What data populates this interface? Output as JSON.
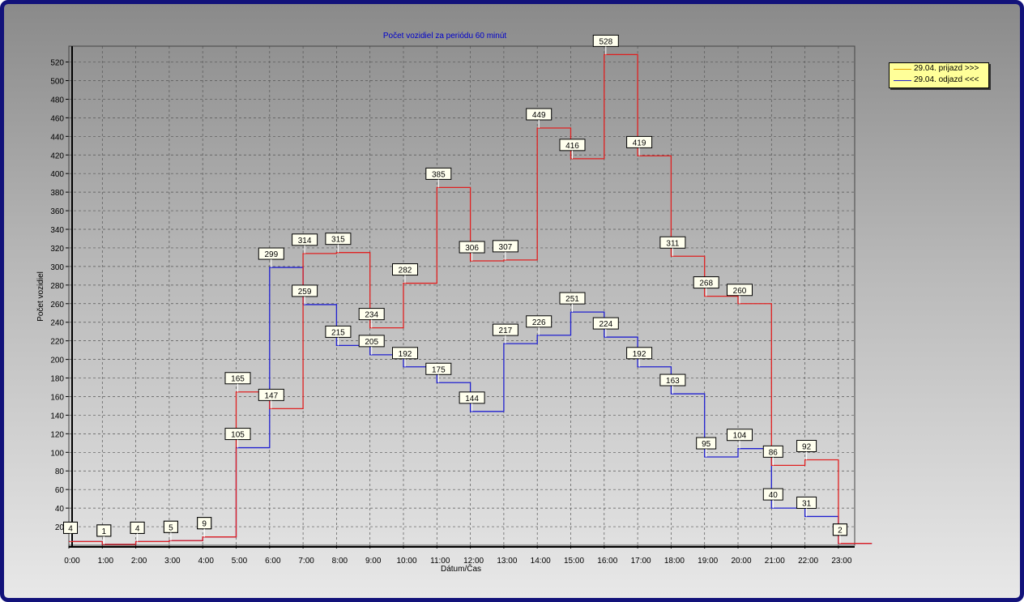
{
  "chart_data": {
    "type": "line",
    "step": true,
    "title": "Počet vozidiel za periódu 60 minút",
    "xlabel": "Dátum/Čas",
    "ylabel": "Počet vozidiel",
    "ylim": [
      0,
      540
    ],
    "yticks": [
      20,
      40,
      60,
      80,
      100,
      120,
      140,
      160,
      180,
      200,
      220,
      240,
      260,
      280,
      300,
      320,
      340,
      360,
      380,
      400,
      420,
      440,
      460,
      480,
      500,
      520
    ],
    "categories": [
      "0:00",
      "1:00",
      "2:00",
      "3:00",
      "4:00",
      "5:00",
      "6:00",
      "7:00",
      "8:00",
      "9:00",
      "10:00",
      "11:00",
      "12:00",
      "13:00",
      "14:00",
      "15:00",
      "16:00",
      "17:00",
      "18:00",
      "19:00",
      "20:00",
      "21:00",
      "22:00",
      "23:00"
    ],
    "grid": true,
    "legend_position": "top-right",
    "series": [
      {
        "name": "29.04.  prijazd >>>",
        "color": "#e02020",
        "values": [
          4,
          1,
          4,
          5,
          9,
          165,
          147,
          314,
          315,
          234,
          282,
          385,
          306,
          307,
          449,
          416,
          528,
          419,
          311,
          268,
          260,
          86,
          92,
          2
        ]
      },
      {
        "name": "29.04.  odjazd <<<",
        "color": "#2020d0",
        "values": [
          4,
          1,
          4,
          5,
          9,
          105,
          299,
          259,
          215,
          205,
          192,
          175,
          144,
          217,
          226,
          251,
          224,
          192,
          163,
          95,
          104,
          40,
          31,
          2
        ]
      }
    ]
  }
}
